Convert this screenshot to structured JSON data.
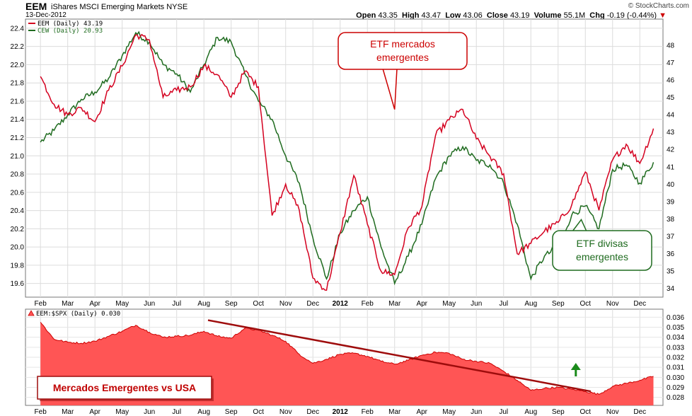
{
  "header": {
    "symbol": "EEM",
    "full_name": "iShares MSCI Emerging Markets",
    "exchange": "NYSE",
    "date": "13-Dec-2012",
    "brand": "© StockCharts.com",
    "open_label": "Open",
    "open": "43.35",
    "high_label": "High",
    "high": "43.47",
    "low_label": "Low",
    "low": "43.06",
    "close_label": "Close",
    "close": "43.19",
    "volume_label": "Volume",
    "volume": "55.1M",
    "chg_label": "Chg",
    "chg": "-0.19 (-0.44%)"
  },
  "colors": {
    "eem": "#d4001f",
    "cew": "#1f6b1f",
    "ratio_fill": "#ff5555",
    "ratio_line": "#cc0000",
    "trend": "#9e0c0c",
    "arrow": "#1a8a1a"
  },
  "annotations": {
    "etf_em": "ETF mercados emergentes",
    "etf_em_lines": [
      "ETF mercados",
      "emergentes"
    ],
    "etf_div": "ETF divisas emergentes",
    "etf_div_lines": [
      "ETF divisas",
      "emergentes"
    ],
    "ratio_title": "Mercados Emergentes vs USA"
  },
  "chart_data": [
    {
      "type": "line",
      "panel": "price",
      "x_tick_labels": [
        "Feb",
        "Mar",
        "Apr",
        "May",
        "Jun",
        "Jul",
        "Aug",
        "Sep",
        "Oct",
        "Nov",
        "Dec",
        "2012",
        "Feb",
        "Mar",
        "Apr",
        "May",
        "Jun",
        "Jul",
        "Aug",
        "Sep",
        "Oct",
        "Nov",
        "Dec"
      ],
      "left_axis_label": "CEW",
      "left_ticks": [
        19.6,
        19.8,
        20.0,
        20.2,
        20.4,
        20.6,
        20.8,
        21.0,
        21.2,
        21.4,
        21.6,
        21.8,
        22.0,
        22.2,
        22.4
      ],
      "left_tick_labels": [
        "19.6",
        "19.8",
        "20.0",
        "20.2",
        "20.4",
        "20.6",
        "20.8",
        "21.0",
        "21.2",
        "21.4",
        "21.6",
        "21.8",
        "22.0",
        "22.2",
        "22.4"
      ],
      "right_axis_label": "EEM",
      "right_ticks": [
        34,
        35,
        36,
        37,
        38,
        39,
        40,
        41,
        42,
        43,
        44,
        45,
        46,
        47,
        48
      ],
      "right_tick_labels": [
        "34",
        "35",
        "36",
        "37",
        "38",
        "39",
        "40",
        "41",
        "42",
        "43",
        "44",
        "45",
        "46",
        "47",
        "48"
      ],
      "ylim_left": [
        19.45,
        22.5
      ],
      "ylim_right": [
        33.5,
        49.5
      ],
      "grid": true,
      "legend_position": "top-left",
      "series": [
        {
          "name": "EEM (Daily)",
          "legend_label": "EEM (Daily) 43.19",
          "axis": "right",
          "x": [
            0,
            0.5,
            1,
            1.5,
            2,
            2.5,
            3,
            3.5,
            4,
            4.5,
            5,
            5.5,
            6,
            6.5,
            7,
            7.5,
            8,
            8.5,
            9,
            9.5,
            10,
            10.5,
            11,
            11.5,
            12,
            12.5,
            13,
            13.5,
            14,
            14.5,
            15,
            15.5,
            16,
            16.5,
            17,
            17.5,
            18,
            18.5,
            19,
            19.5,
            20,
            20.5,
            21,
            21.5,
            22,
            22.5
          ],
          "values": [
            46.2,
            44.6,
            44.0,
            44.4,
            43.6,
            45.4,
            46.8,
            48.6,
            48.3,
            45.0,
            45.4,
            45.6,
            46.8,
            46.3,
            45.0,
            46.5,
            45.6,
            38.2,
            40.0,
            38.5,
            34.6,
            33.9,
            37.2,
            40.5,
            37.7,
            35.0,
            34.8,
            37.5,
            38.7,
            42.8,
            43.7,
            44.3,
            42.6,
            41.6,
            40.6,
            36.0,
            36.6,
            37.3,
            37.8,
            38.8,
            40.7,
            38.5,
            41.4,
            42.3,
            41.2,
            43.2
          ]
        },
        {
          "name": "CEW (Daily)",
          "legend_label": "CEW (Daily) 20.93",
          "axis": "left",
          "x": [
            0,
            0.5,
            1,
            1.5,
            2,
            2.5,
            3,
            3.5,
            4,
            4.5,
            5,
            5.5,
            6,
            6.5,
            7,
            7.5,
            8,
            8.5,
            9,
            9.5,
            10,
            10.5,
            11,
            11.5,
            12,
            12.5,
            13,
            13.5,
            14,
            14.5,
            15,
            15.5,
            16,
            16.5,
            17,
            17.5,
            18,
            18.5,
            19,
            19.5,
            20,
            20.5,
            21,
            21.5,
            22,
            22.5
          ],
          "values": [
            21.15,
            21.28,
            21.45,
            21.62,
            21.7,
            21.85,
            22.1,
            22.35,
            22.25,
            22.0,
            21.9,
            21.7,
            22.0,
            22.3,
            22.25,
            21.9,
            21.6,
            21.4,
            21.0,
            20.7,
            20.1,
            19.65,
            20.15,
            20.4,
            20.55,
            20.0,
            19.6,
            19.9,
            20.25,
            20.75,
            21.0,
            21.1,
            20.95,
            20.9,
            20.7,
            20.25,
            19.65,
            19.9,
            20.0,
            20.35,
            20.45,
            20.2,
            20.85,
            20.9,
            20.7,
            20.93
          ]
        }
      ]
    },
    {
      "type": "area",
      "panel": "ratio",
      "x_tick_labels": [
        "Feb",
        "Mar",
        "Apr",
        "May",
        "Jun",
        "Jul",
        "Aug",
        "Sep",
        "Oct",
        "Nov",
        "Dec",
        "2012",
        "Feb",
        "Mar",
        "Apr",
        "May",
        "Jun",
        "Jul",
        "Aug",
        "Sep",
        "Oct",
        "Nov",
        "Dec"
      ],
      "right_ticks": [
        0.028,
        0.029,
        0.03,
        0.031,
        0.032,
        0.033,
        0.034,
        0.035,
        0.036
      ],
      "right_tick_labels": [
        "0.028",
        "0.029",
        "0.030",
        "0.031",
        "0.032",
        "0.033",
        "0.034",
        "0.035",
        "0.036"
      ],
      "ylim": [
        0.0272,
        0.0368
      ],
      "series": [
        {
          "name": "EEM:$SPX (Daily)",
          "legend_label": "EEM:$SPX (Daily) 0.030",
          "x": [
            0,
            0.5,
            1,
            1.5,
            2,
            2.5,
            3,
            3.5,
            4,
            4.5,
            5,
            5.5,
            6,
            6.5,
            7,
            7.5,
            8,
            8.5,
            9,
            9.5,
            10,
            10.5,
            11,
            11.5,
            12,
            12.5,
            13,
            13.5,
            14,
            14.5,
            15,
            15.5,
            16,
            16.5,
            17,
            17.5,
            18,
            18.5,
            19,
            19.5,
            20,
            20.5,
            21,
            21.5,
            22,
            22.5
          ],
          "values": [
            0.0355,
            0.0338,
            0.0335,
            0.0334,
            0.0336,
            0.0341,
            0.0346,
            0.0352,
            0.0345,
            0.034,
            0.0341,
            0.0342,
            0.0346,
            0.0341,
            0.0339,
            0.0349,
            0.0347,
            0.0342,
            0.0336,
            0.0323,
            0.0314,
            0.0318,
            0.0323,
            0.0324,
            0.0321,
            0.0316,
            0.0313,
            0.0317,
            0.0322,
            0.0325,
            0.0324,
            0.0318,
            0.0316,
            0.0314,
            0.0306,
            0.0297,
            0.0287,
            0.0289,
            0.029,
            0.0288,
            0.0286,
            0.0283,
            0.0291,
            0.0294,
            0.0297,
            0.0301
          ]
        },
        {
          "name": "trendline",
          "x": [
            6.15,
            20.2
          ],
          "values": [
            0.0357,
            0.0286
          ]
        }
      ]
    }
  ]
}
